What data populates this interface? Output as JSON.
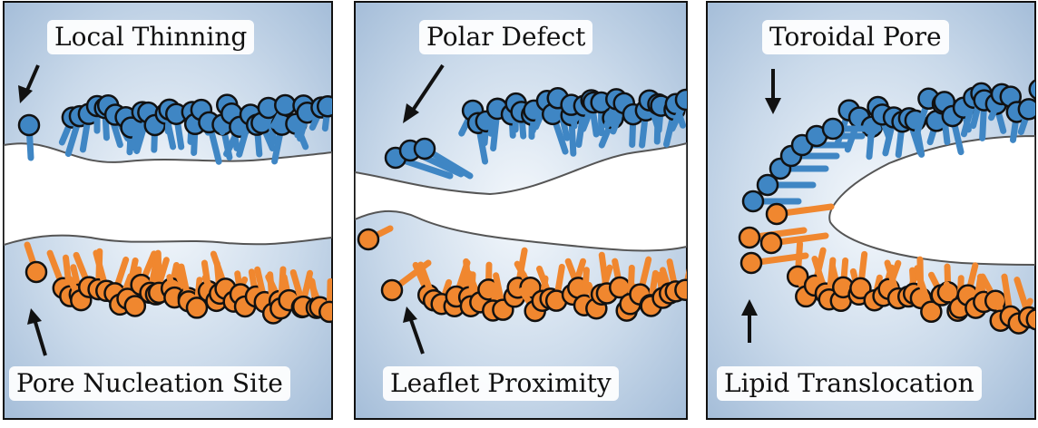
{
  "panels": [
    {
      "top_label": "Local Thinning",
      "bottom_label": "Pore Nucleation Site"
    },
    {
      "top_label": "Polar Defect",
      "bottom_label": "Leaflet Proximity"
    },
    {
      "top_label": "Toroidal Pore",
      "bottom_label": "Lipid Translocation"
    }
  ],
  "colors": {
    "upper_leaflet": "#3f86c4",
    "lower_leaflet": "#f0872f",
    "outline": "#111111",
    "background_blue": "#9fb9d6",
    "water_surface": "#ffffff"
  }
}
